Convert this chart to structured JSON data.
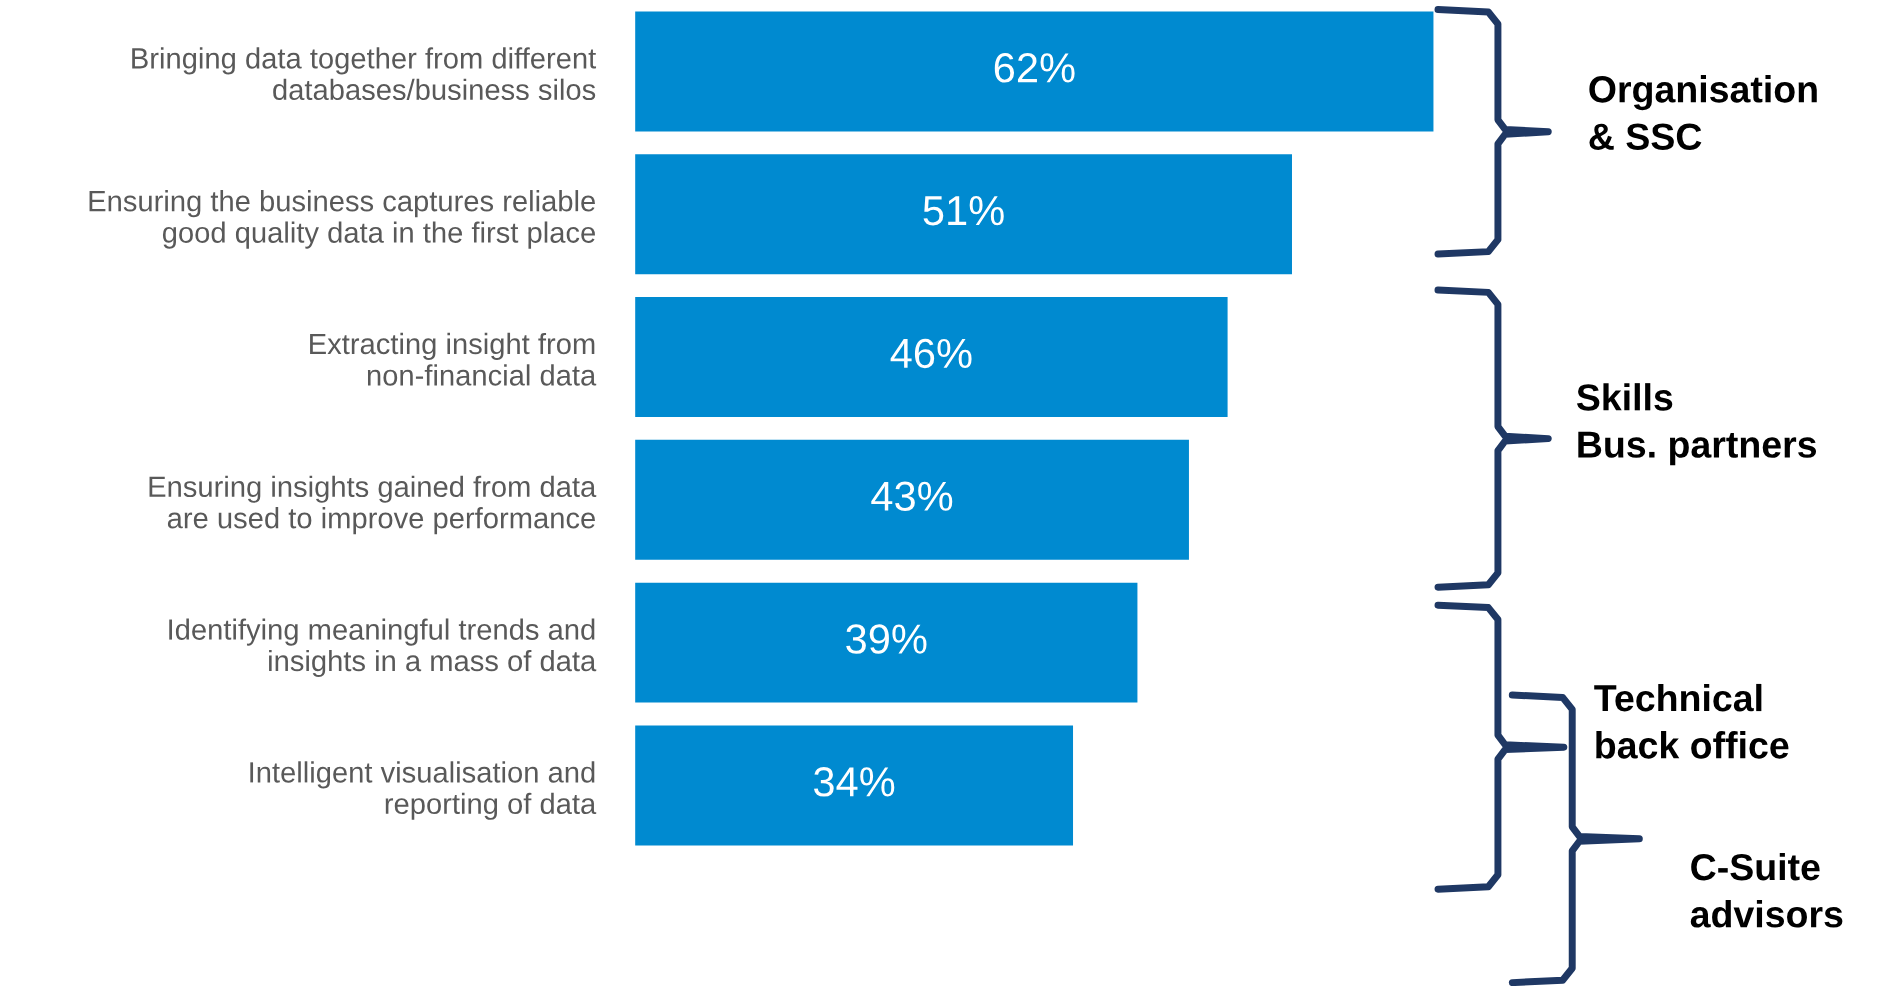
{
  "chart_data": {
    "type": "bar",
    "orientation": "horizontal",
    "categories": [
      "Bringing data together from different\ndatabases/business silos",
      "Ensuring the business captures reliable\ngood quality data in the first place",
      "Extracting insight from\nnon-financial data",
      "Ensuring insights gained from data\nare used to improve performance",
      "Identifying meaningful trends and\ninsights in a mass of data",
      "Intelligent visualisation and\nreporting of data"
    ],
    "values": [
      62,
      51,
      46,
      43,
      39,
      34
    ],
    "value_labels": [
      "62%",
      "51%",
      "46%",
      "43%",
      "39%",
      "34%"
    ],
    "color": "#008ad0",
    "grid": false,
    "legend": false,
    "tick_labels": "y",
    "annotations": [
      "Organisation\n& SSC",
      "Skills\nBus. partners",
      "Technical\nback office",
      "C-Suite\nadvisors"
    ]
  }
}
